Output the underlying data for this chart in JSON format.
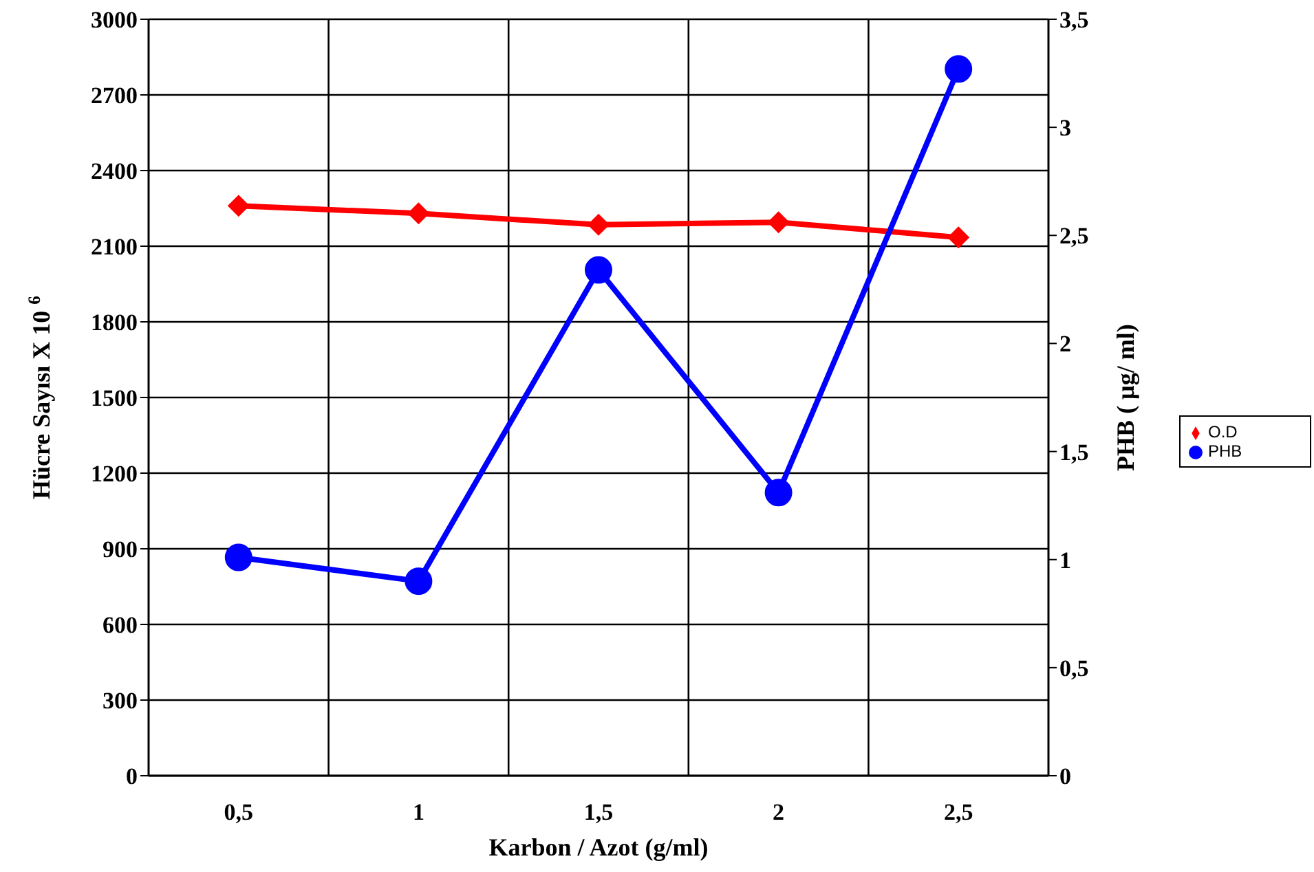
{
  "chart_data": {
    "type": "line",
    "xlabel": "Karbon / Azot (g/ml)",
    "ylabel": "Hücre Sayısı X 10 $^{6}$",
    "y2label": "PHB ( µg/ ml)",
    "categories": [
      "0,5",
      "1",
      "1,5",
      "2",
      "2,5"
    ],
    "series": [
      {
        "name": "O.D",
        "color": "#ff0000",
        "marker": "diamond",
        "values": [
          2260,
          2230,
          2185,
          2195,
          2135
        ]
      },
      {
        "name": "PHB",
        "color": "#0000ff",
        "marker": "circle",
        "axis": "y2",
        "values": [
          1.01,
          0.9,
          2.34,
          1.31,
          3.27
        ]
      }
    ],
    "ylim": [
      0,
      3000
    ],
    "yticks": [
      0,
      300,
      600,
      900,
      1200,
      1500,
      1800,
      2100,
      2400,
      2700,
      3000
    ],
    "y2lim": [
      0,
      3.5
    ],
    "y2ticks": [
      0,
      {
        "value": 0.5,
        "label": "0,5"
      },
      1,
      {
        "value": 1.5,
        "label": "1,5"
      },
      2,
      {
        "value": 2.5,
        "label": "2,5"
      },
      3,
      {
        "value": 3.5,
        "label": "3,5"
      }
    ],
    "grid": true,
    "legend": "right"
  }
}
